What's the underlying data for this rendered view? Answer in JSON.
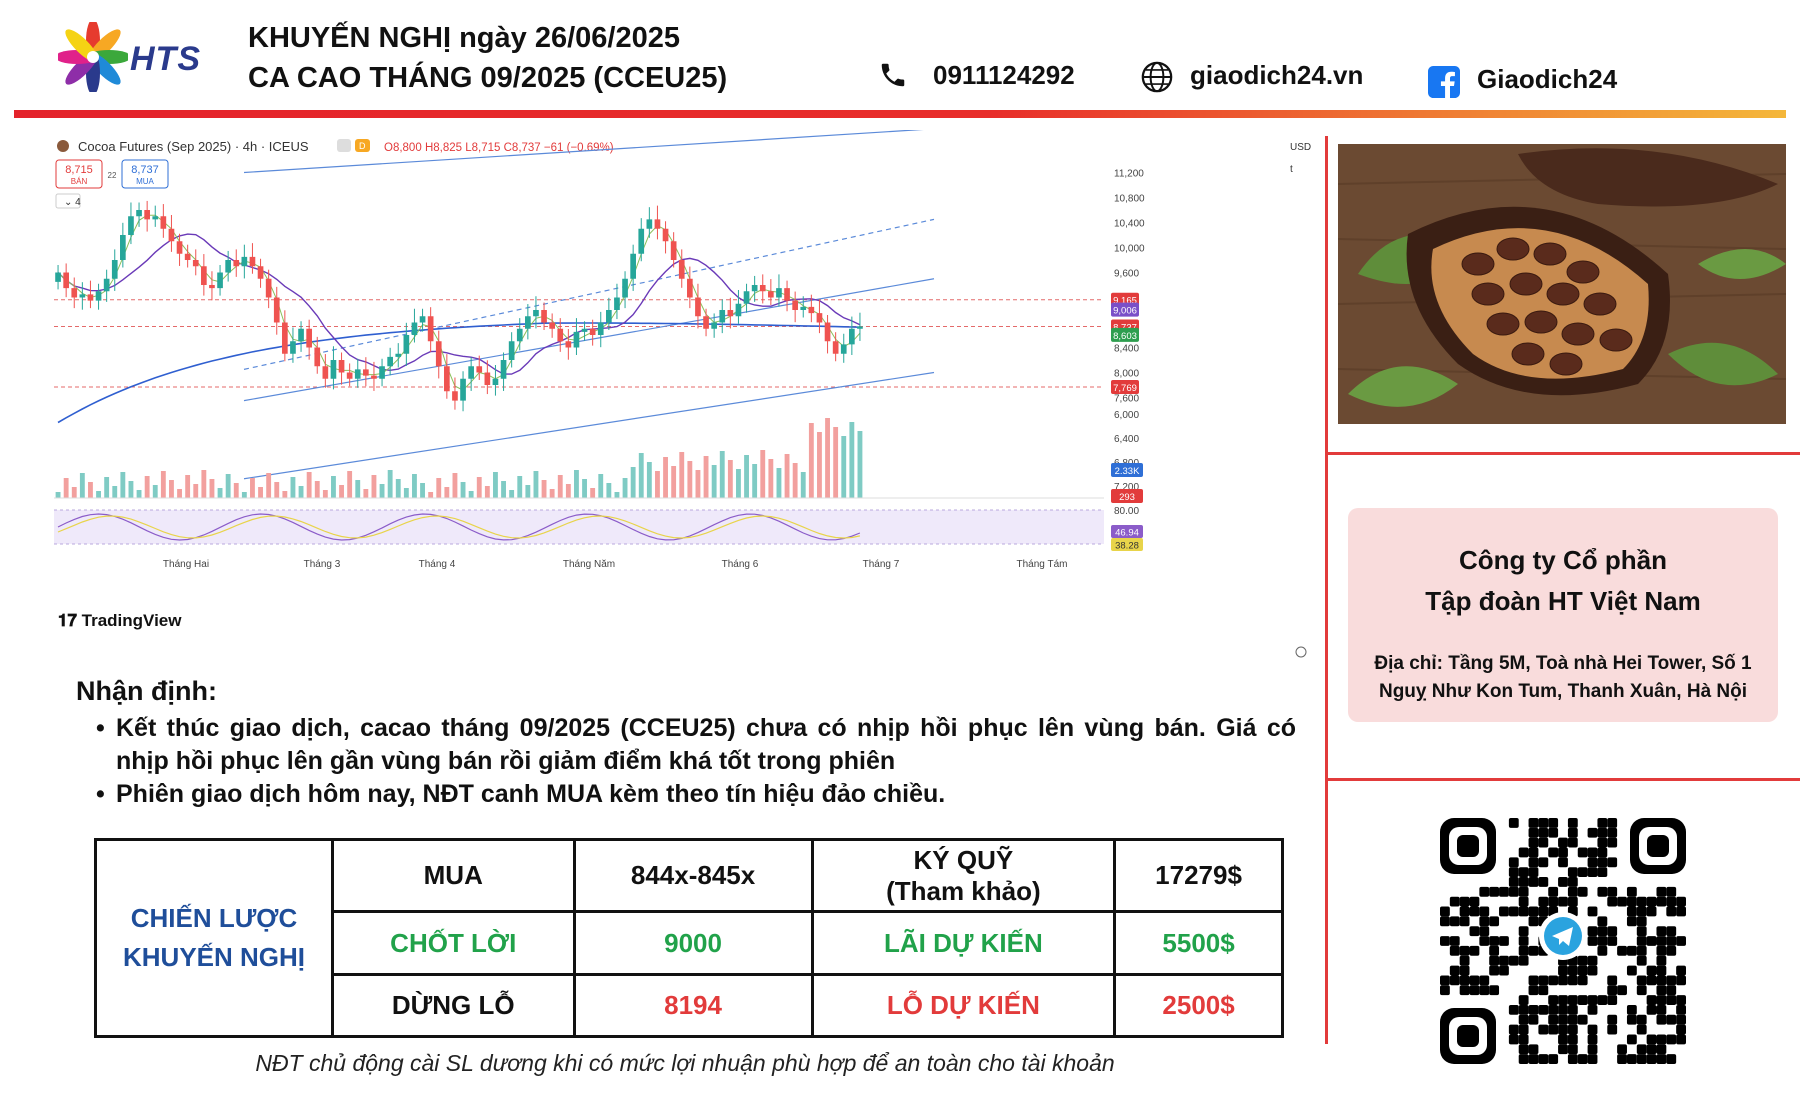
{
  "header": {
    "logo_text": "HTS",
    "title_line1": "KHUYẾN NGHỊ ngày 26/06/2025",
    "title_line2": "CA CAO THÁNG 09/2025 (CCEU25)",
    "phone": "0911124292",
    "website": "giaodich24.vn",
    "facebook": "Giaodich24"
  },
  "chart_data": {
    "type": "candlestick",
    "instrument": "Cocoa Futures (Sep 2025)",
    "interval": "4h",
    "exchange": "ICEUS",
    "interval_badge": "D",
    "ohlc_text": {
      "o": "O8,800",
      "h": "H8,825",
      "l": "L8,715",
      "c": "C8,737",
      "chg": "−61 (−0.69%)"
    },
    "sell_price": "8,715",
    "sell_label": "BÁN",
    "spread": "22",
    "buy_price": "8,737",
    "buy_label": "MUA",
    "indicators_count": "4",
    "currency": "USD",
    "unit": "t",
    "y_ticks": [
      11200,
      10800,
      10400,
      10000,
      9600,
      8400,
      8000,
      7600,
      7200,
      6800,
      6400,
      6000
    ],
    "y_tick_labels": [
      "11,200",
      "10,800",
      "10,400",
      "10,000",
      "9,600",
      "8,400",
      "8,000",
      "7,600",
      "7,200",
      "6,800",
      "6,400",
      "6,000"
    ],
    "ylim": [
      5800,
      11400
    ],
    "x_labels": [
      "Tháng Hai",
      "Tháng 3",
      "Tháng 4",
      "Tháng Năm",
      "Tháng 6",
      "Tháng 7",
      "Tháng Tám"
    ],
    "price_tags": [
      {
        "label": "9,165",
        "value": 9165,
        "color": "#e23b3b"
      },
      {
        "label": "9,006",
        "value": 9006,
        "color": "#7a4fc8"
      },
      {
        "label": "8,737",
        "value": 8737,
        "color": "#e23b3b"
      },
      {
        "label": "8,603",
        "value": 8603,
        "color": "#2e9e4f"
      },
      {
        "label": "7,769",
        "value": 7769,
        "color": "#e23b3b"
      }
    ],
    "horizontal_levels": [
      9165,
      8737,
      7769
    ],
    "closes": [
      9600,
      9350,
      9200,
      9250,
      9150,
      9300,
      9500,
      9800,
      10200,
      10500,
      10600,
      10450,
      10500,
      10300,
      10100,
      9900,
      9800,
      9700,
      9400,
      9350,
      9600,
      9800,
      9700,
      9850,
      9700,
      9500,
      9200,
      8800,
      8300,
      8500,
      8700,
      8400,
      8100,
      7900,
      8200,
      8000,
      7900,
      8050,
      7950,
      7900,
      8100,
      8250,
      8300,
      8600,
      8800,
      8900,
      8500,
      8100,
      7700,
      7550,
      7900,
      8100,
      8000,
      7800,
      7900,
      8200,
      8500,
      8700,
      8900,
      9000,
      8800,
      8700,
      8500,
      8400,
      8650,
      8700,
      8600,
      8800,
      9000,
      9200,
      9500,
      9900,
      10300,
      10450,
      10300,
      10100,
      9800,
      9500,
      9200,
      8900,
      8700,
      8800,
      9000,
      8900,
      9100,
      9300,
      9400,
      9300,
      9200,
      9350,
      9150,
      9000,
      9050,
      8950,
      8800,
      8500,
      8300,
      8450,
      8700,
      8737
    ],
    "volume_tags": [
      {
        "label": "2.33K",
        "color": "#2f6fd6"
      },
      {
        "label": "293",
        "color": "#e23b3b"
      }
    ],
    "oscillator_levels": [
      "80.00"
    ],
    "oscillator_tags": [
      {
        "label": "46.94",
        "color": "#8b5cc9"
      },
      {
        "label": "38.28",
        "color": "#e8d44a"
      }
    ],
    "watermark": "TradingView"
  },
  "commentary": {
    "heading": "Nhận định:",
    "bullet1": "Kết thúc giao dịch, cacao tháng 09/2025 (CCEU25) chưa có nhịp hồi phục lên vùng bán. Giá có nhịp hồi phục lên gần vùng bán rồi giảm điểm khá tốt trong phiên",
    "bullet2": "Phiên giao dịch hôm nay, NĐT canh MUA kèm theo tín hiệu đảo chiều.",
    "bullet_symbol": "•"
  },
  "strategy": {
    "label_line1": "CHIẾN LƯỢC",
    "label_line2": "KHUYẾN NGHỊ",
    "action": "MUA",
    "entry": "844x-845x",
    "margin_label1": "KÝ QUỸ",
    "margin_label2": "(Tham khảo)",
    "margin_value": "17279$",
    "tp_label": "CHỐT LỜI",
    "tp_value": "9000",
    "profit_label": "LÃI DỰ KIẾN",
    "profit_value": "5500$",
    "sl_label": "DỪNG LỖ",
    "sl_value": "8194",
    "loss_label": "LỖ DỰ KIẾN",
    "loss_value": "2500$"
  },
  "footnote": "NĐT chủ động cài SL dương khi có mức lợi nhuận phù hợp để an toàn cho tài khoản",
  "company": {
    "name_line1": "Công ty Cổ phần",
    "name_line2": "Tập đoàn HT Việt Nam",
    "address": "Địa chỉ: Tầng 5M, Toà nhà Hei Tower, Số 1 Nguỵ Như Kon Tum, Thanh Xuân, Hà Nội"
  },
  "icons": {
    "phone": "phone-icon",
    "web": "globe-icon",
    "facebook": "facebook-icon",
    "qr_center": "telegram-icon"
  },
  "colors": {
    "brand_red": "#e4232b",
    "brand_navy": "#2a3a8c",
    "bull": "#26a69a",
    "bear": "#ef5350",
    "channel": "#5b8ad9",
    "ma_long": "#2f5fd0",
    "ma_mid": "#6a3ab8",
    "table_green": "#21a24a",
    "table_red": "#e23b3b",
    "table_blue": "#1f4e9a"
  }
}
